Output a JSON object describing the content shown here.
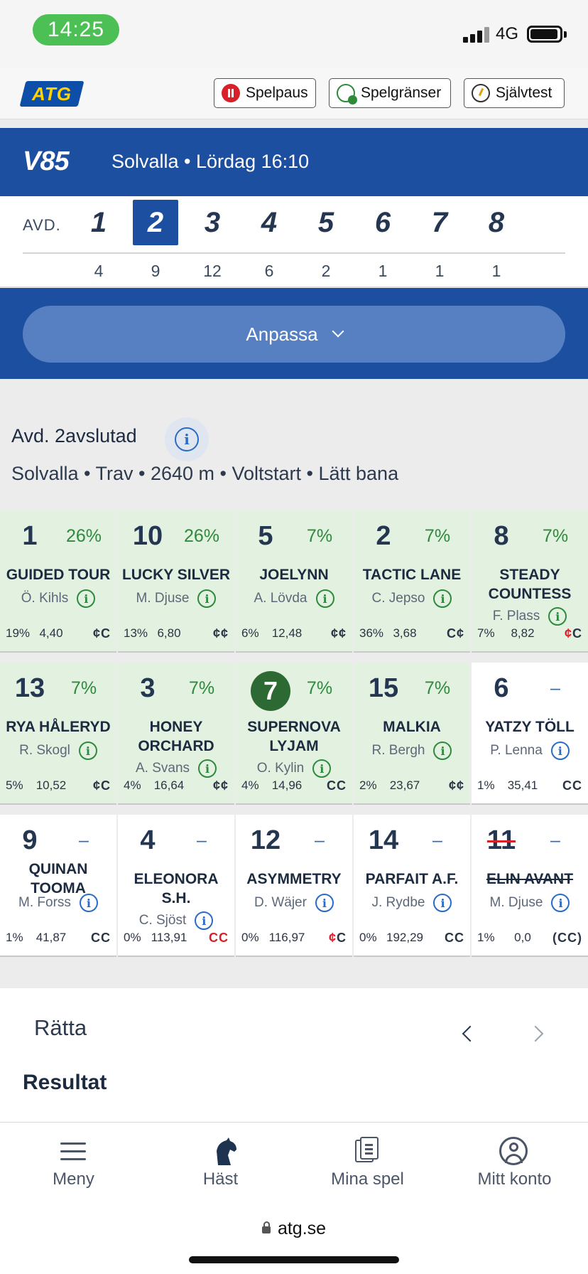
{
  "status": {
    "time": "14:25",
    "network": "4G"
  },
  "toolbar": {
    "logo": "ATG",
    "spelpaus": "Spelpaus",
    "spelgranser": "Spelgränser",
    "sjalvtest": "Självtest"
  },
  "race": {
    "game": "V85",
    "info": "Solvalla • Lördag 16:10"
  },
  "divisions": {
    "label": "AVD.",
    "items": [
      {
        "num": "1",
        "count": "4",
        "active": false
      },
      {
        "num": "2",
        "count": "9",
        "active": true
      },
      {
        "num": "3",
        "count": "12",
        "active": false
      },
      {
        "num": "4",
        "count": "6",
        "active": false
      },
      {
        "num": "5",
        "count": "2",
        "active": false
      },
      {
        "num": "6",
        "count": "1",
        "active": false
      },
      {
        "num": "7",
        "count": "1",
        "active": false
      },
      {
        "num": "8",
        "count": "1",
        "active": false
      }
    ]
  },
  "anpassa": "Anpassa",
  "avd": {
    "title": "Avd. 2avslutad",
    "meta": "Solvalla • Trav • 2640 m • Voltstart • Lätt bana"
  },
  "horses": [
    {
      "num": "1",
      "pct": "26%",
      "name": "GUIDED TOUR",
      "driver": "Ö. Kihls",
      "stat1": "19%",
      "odds": "4,40",
      "cc": "¢C",
      "selected": true
    },
    {
      "num": "10",
      "pct": "26%",
      "name": "LUCKY SILVER",
      "driver": "M. Djuse",
      "stat1": "13%",
      "odds": "6,80",
      "cc": "¢¢",
      "selected": true
    },
    {
      "num": "5",
      "pct": "7%",
      "name": "JOELYNN",
      "driver": "A. Lövda",
      "stat1": "6%",
      "odds": "12,48",
      "cc": "¢¢",
      "selected": true
    },
    {
      "num": "2",
      "pct": "7%",
      "name": "TACTIC LANE",
      "driver": "C. Jepso",
      "stat1": "36%",
      "odds": "3,68",
      "cc": "C¢",
      "selected": true
    },
    {
      "num": "8",
      "pct": "7%",
      "name": "STEADY COUNTESS",
      "driver": "F. Plass",
      "stat1": "7%",
      "odds": "8,82",
      "cc": "¢C",
      "cc_red": true,
      "selected": true
    },
    {
      "num": "13",
      "pct": "7%",
      "name": "RYA HÅLERYD",
      "driver": "R. Skogl",
      "stat1": "5%",
      "odds": "10,52",
      "cc": "¢C",
      "selected": true
    },
    {
      "num": "3",
      "pct": "7%",
      "name": "HONEY ORCHARD",
      "driver": "A. Svans",
      "stat1": "4%",
      "odds": "16,64",
      "cc": "¢¢",
      "selected": true
    },
    {
      "num": "7",
      "pct": "7%",
      "name": "SUPERNOVA LYJAM",
      "driver": "O. Kylin",
      "stat1": "4%",
      "odds": "14,96",
      "cc": "CC",
      "selected": true,
      "winner": true
    },
    {
      "num": "15",
      "pct": "7%",
      "name": "MALKIA",
      "driver": "R. Bergh",
      "stat1": "2%",
      "odds": "23,67",
      "cc": "¢¢",
      "selected": true
    },
    {
      "num": "6",
      "pct": "–",
      "name": "YATZY TÖLL",
      "driver": "P. Lenna",
      "stat1": "1%",
      "odds": "35,41",
      "cc": "CC",
      "selected": false
    },
    {
      "num": "9",
      "pct": "–",
      "name": "QUINAN TOOMA",
      "driver": "M. Forss",
      "stat1": "1%",
      "odds": "41,87",
      "cc": "CC",
      "selected": false
    },
    {
      "num": "4",
      "pct": "–",
      "name": "ELEONORA S.H.",
      "driver": "C. Sjöst",
      "stat1": "0%",
      "odds": "113,91",
      "cc": "CC",
      "cc_red_all": true,
      "selected": false
    },
    {
      "num": "12",
      "pct": "–",
      "name": "ASYMMETRY",
      "driver": "D. Wäjer",
      "stat1": "0%",
      "odds": "116,97",
      "cc": "¢C",
      "cc_red": true,
      "selected": false
    },
    {
      "num": "14",
      "pct": "–",
      "name": "PARFAIT A.F.",
      "driver": "J. Rydbe",
      "stat1": "0%",
      "odds": "192,29",
      "cc": "CC",
      "selected": false
    },
    {
      "num": "11",
      "pct": "–",
      "name": "ELIN AVANT",
      "driver": "M. Djuse",
      "stat1": "1%",
      "odds": "0,0",
      "cc": "(CC)",
      "selected": false,
      "scratched": true
    }
  ],
  "ratta": "Rätta",
  "resultat": "Resultat",
  "nav": {
    "meny": "Meny",
    "hast": "Häst",
    "mina_spel": "Mina spel",
    "mitt_konto": "Mitt konto"
  },
  "url": "atg.se",
  "colors": {
    "brand_blue": "#1c4fa0",
    "selected_bg": "#e3f1e1",
    "green": "#2e8a3c",
    "red": "#d7202a"
  }
}
